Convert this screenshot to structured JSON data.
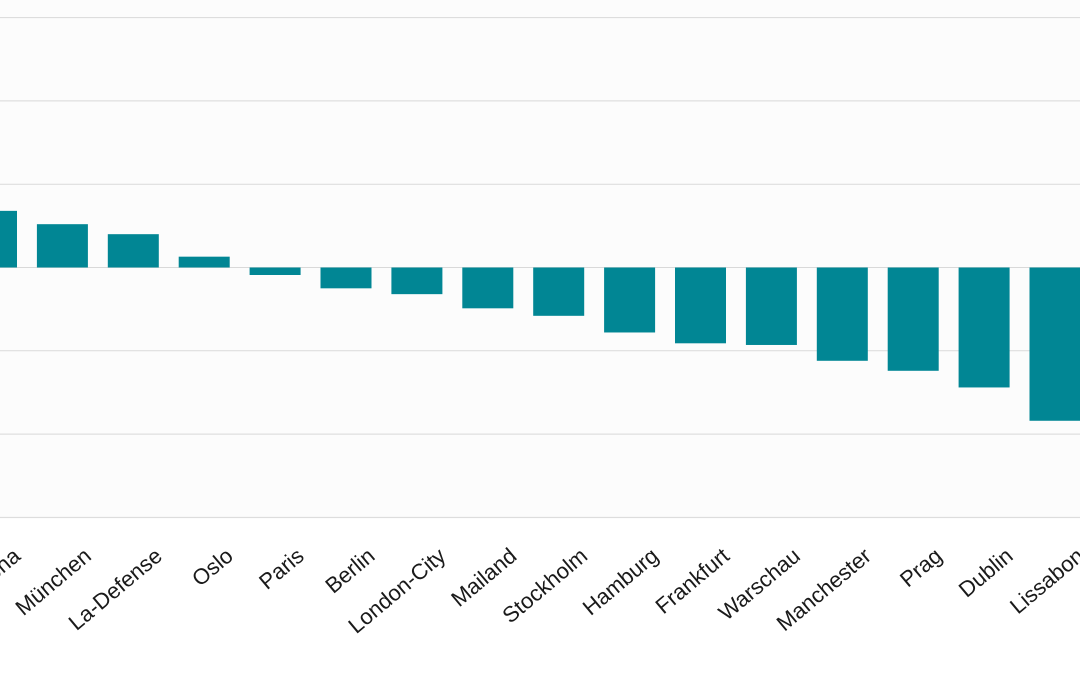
{
  "chart_data": {
    "type": "bar",
    "categories": [
      "Barcelona",
      "München",
      "La-Defense",
      "Oslo",
      "Paris",
      "Berlin",
      "London-City",
      "Mailand",
      "Stockholm",
      "Hamburg",
      "Frankfurt",
      "Warschau",
      "Manchester",
      "Prag",
      "Dublin",
      "Lissabon"
    ],
    "values": [
      3.4,
      2.6,
      2.0,
      0.65,
      -0.45,
      -1.25,
      -1.6,
      -2.45,
      -2.9,
      -3.9,
      -4.55,
      -4.65,
      -5.6,
      -6.2,
      -7.2,
      -9.2
    ],
    "ylim": [
      -15,
      15
    ],
    "grid": true,
    "accent_color": "#018694"
  }
}
